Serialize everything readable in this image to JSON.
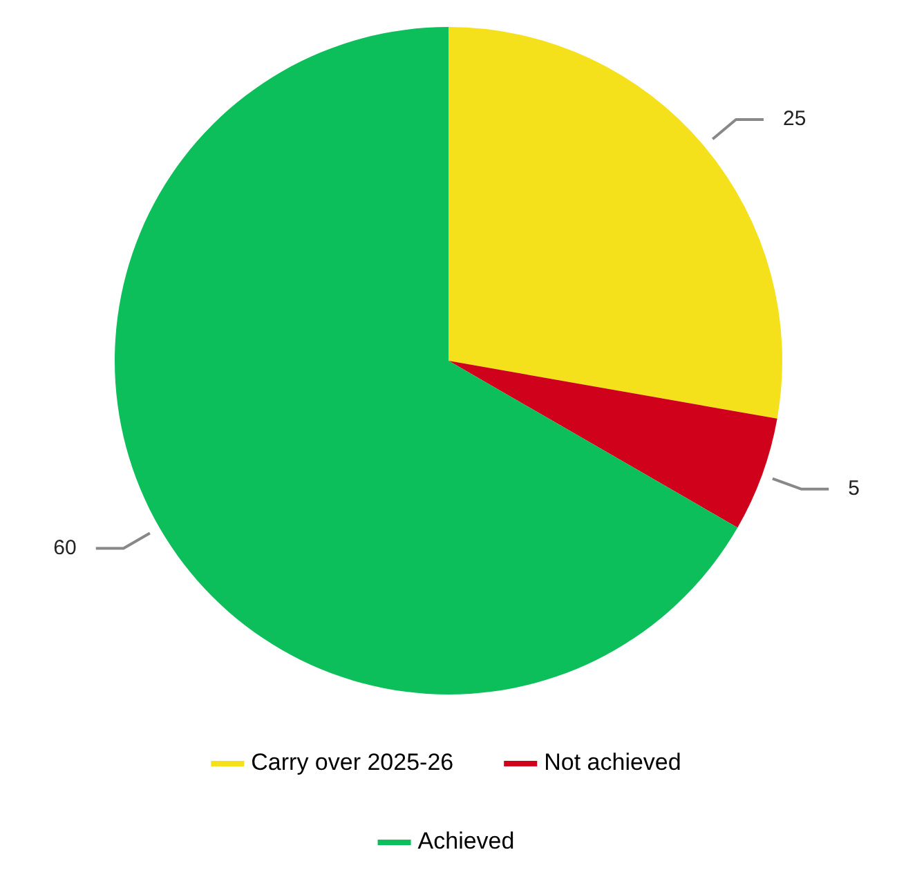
{
  "chart_data": {
    "type": "pie",
    "categories": [
      "Carry over 2025-26",
      "Not achieved",
      "Achieved"
    ],
    "values": [
      25,
      5,
      60
    ],
    "colors": [
      "#f5e11b",
      "#d0021b",
      "#0dbf5b"
    ],
    "data_labels": true,
    "legend": "bottom"
  }
}
